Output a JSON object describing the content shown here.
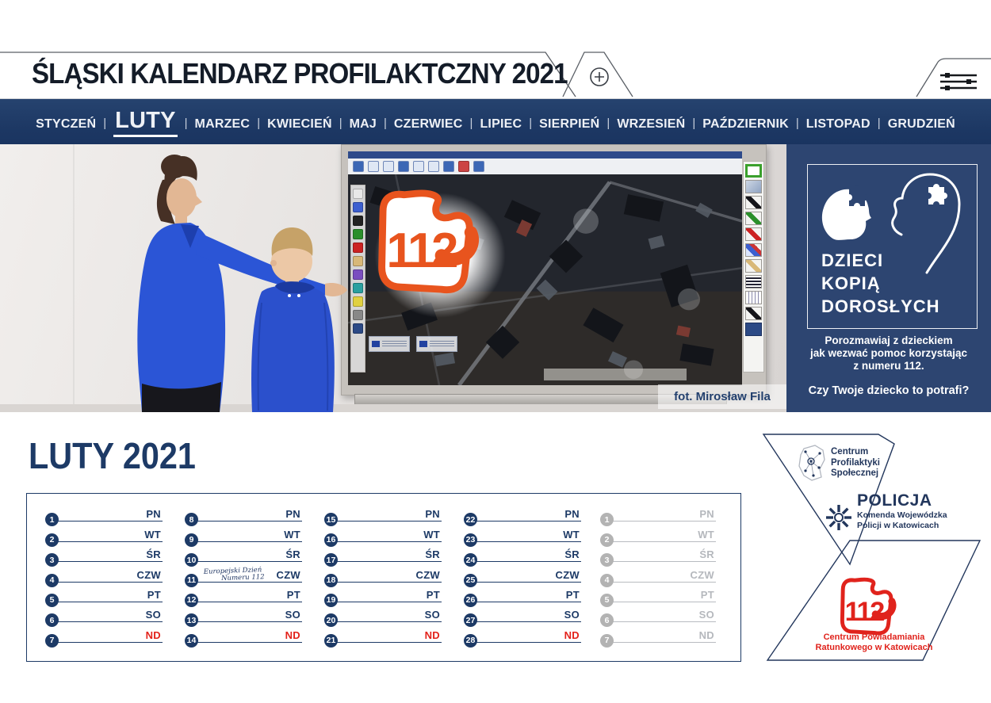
{
  "header": {
    "title": "ŚLĄSKI KALENDARZ PROFILAKTCZNY 2021"
  },
  "month_nav": {
    "separator": "|",
    "active_month": "LUTY",
    "months": [
      "STYCZEŃ",
      "LUTY",
      "MARZEC",
      "KWIECIEŃ",
      "MAJ",
      "CZERWIEC",
      "LIPIEC",
      "SIERPIEŃ",
      "WRZESIEŃ",
      "PAŹDZIERNIK",
      "LISTOPAD",
      "GRUDZIEŃ"
    ]
  },
  "photo": {
    "credit": "fot. Mirosław Fila",
    "board_logo_number": "112"
  },
  "promo_panel": {
    "title_lines": [
      "DZIECI",
      "KOPIĄ",
      "DOROSŁYCH"
    ],
    "message_lines": [
      "Porozmawiaj z dzieckiem",
      "jak wezwać pomoc korzystając",
      "z numeru 112."
    ],
    "question": "Czy Twoje dziecko to potrafi?"
  },
  "calendar": {
    "title": "LUTY 2021",
    "columns": [
      {
        "muted": false,
        "days": [
          {
            "num": "1",
            "label": "PN"
          },
          {
            "num": "2",
            "label": "WT"
          },
          {
            "num": "3",
            "label": "ŚR"
          },
          {
            "num": "4",
            "label": "CZW"
          },
          {
            "num": "5",
            "label": "PT"
          },
          {
            "num": "6",
            "label": "SO"
          },
          {
            "num": "7",
            "label": "ND"
          }
        ]
      },
      {
        "muted": false,
        "days": [
          {
            "num": "8",
            "label": "PN"
          },
          {
            "num": "9",
            "label": "WT"
          },
          {
            "num": "10",
            "label": "ŚR"
          },
          {
            "num": "11",
            "label": "CZW",
            "note": [
              "Europejski Dzień",
              "Numeru 112"
            ]
          },
          {
            "num": "12",
            "label": "PT"
          },
          {
            "num": "13",
            "label": "SO"
          },
          {
            "num": "14",
            "label": "ND"
          }
        ]
      },
      {
        "muted": false,
        "days": [
          {
            "num": "15",
            "label": "PN"
          },
          {
            "num": "16",
            "label": "WT"
          },
          {
            "num": "17",
            "label": "ŚR"
          },
          {
            "num": "18",
            "label": "CZW"
          },
          {
            "num": "19",
            "label": "PT"
          },
          {
            "num": "20",
            "label": "SO"
          },
          {
            "num": "21",
            "label": "ND"
          }
        ]
      },
      {
        "muted": false,
        "days": [
          {
            "num": "22",
            "label": "PN"
          },
          {
            "num": "23",
            "label": "WT"
          },
          {
            "num": "24",
            "label": "ŚR"
          },
          {
            "num": "25",
            "label": "CZW"
          },
          {
            "num": "26",
            "label": "PT"
          },
          {
            "num": "27",
            "label": "SO"
          },
          {
            "num": "28",
            "label": "ND"
          }
        ]
      },
      {
        "muted": true,
        "days": [
          {
            "num": "1",
            "label": "PN"
          },
          {
            "num": "2",
            "label": "WT"
          },
          {
            "num": "3",
            "label": "ŚR"
          },
          {
            "num": "4",
            "label": "CZW"
          },
          {
            "num": "5",
            "label": "PT"
          },
          {
            "num": "6",
            "label": "SO"
          },
          {
            "num": "7",
            "label": "ND"
          }
        ]
      }
    ]
  },
  "logos": {
    "cps_lines": [
      "Centrum",
      "Profilaktyki",
      "Społecznej"
    ],
    "policja_title": "POLICJA",
    "policja_sub_lines": [
      "Komenda Wojewódzka",
      "Policji w Katowicach"
    ],
    "cpr_number": "112",
    "cpr_lines": [
      "Centrum Powiadamiania",
      "Ratunkowego w Katowicach"
    ]
  },
  "colors": {
    "navy": "#1d3a66",
    "panel_navy": "#2d4571",
    "sunday_red": "#e3221b",
    "logo_orange": "#e8541e",
    "logo_red": "#e0231c"
  }
}
